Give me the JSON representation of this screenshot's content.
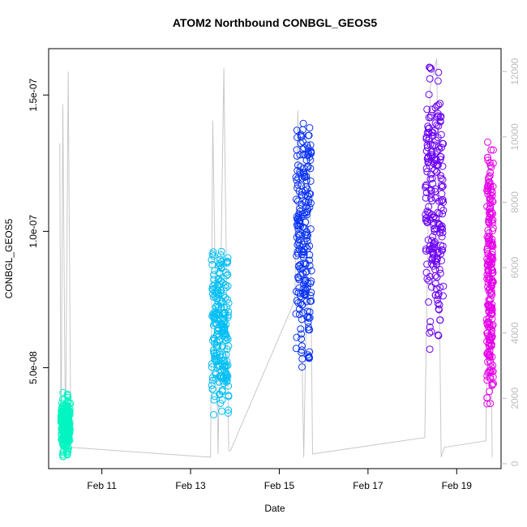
{
  "chart_data": {
    "type": "scatter",
    "title": "ATOM2 Northbound CONBGL_GEOS5",
    "xlabel": "Date",
    "ylabel": "CONBGL_GEOS5",
    "x_ticks": [
      "Feb 11",
      "Feb 13",
      "Feb 15",
      "Feb 17",
      "Feb 19"
    ],
    "x_tick_days": [
      11,
      13,
      15,
      17,
      19
    ],
    "xlim_days": [
      9.8,
      20.0
    ],
    "y_ticks": [
      "5.0e-08",
      "1.0e-07",
      "1.5e-07"
    ],
    "y_tick_values": [
      5e-08,
      1e-07,
      1.5e-07
    ],
    "ylim": [
      1.3e-08,
      1.67e-07
    ],
    "y2_ticks": [
      "0",
      "2000",
      "4000",
      "6000",
      "8000",
      "10000",
      "12000"
    ],
    "y2_tick_values": [
      0,
      2000,
      4000,
      6000,
      8000,
      10000,
      12000
    ],
    "y2lim": [
      -150,
      12700
    ],
    "colors": {
      "altitude_line": "#c8c8c8",
      "axis": "#000000",
      "right_axis": "#bdbdbd"
    },
    "series": [
      {
        "day_start": 10.08,
        "day_end": 10.28,
        "y_min": 1.7e-08,
        "y_max": 4.1e-08,
        "color": "#00f5c0"
      },
      {
        "day_start": 13.48,
        "day_end": 13.86,
        "y_min": 3.2e-08,
        "y_max": 9.5e-08,
        "color": "#00bff5"
      },
      {
        "day_start": 15.38,
        "day_end": 15.72,
        "y_min": 5e-08,
        "y_max": 1.45e-07,
        "color": "#0a33f5"
      },
      {
        "day_start": 18.3,
        "day_end": 18.7,
        "y_min": 5.5e-08,
        "y_max": 1.62e-07,
        "color": "#6a00f5"
      },
      {
        "day_start": 19.68,
        "day_end": 19.82,
        "y_min": 3.5e-08,
        "y_max": 1.35e-07,
        "color": "#e600ea"
      }
    ],
    "altitude_profile": {
      "day": [
        10.05,
        10.08,
        10.12,
        10.18,
        10.24,
        10.3,
        13.45,
        13.5,
        13.62,
        13.75,
        13.86,
        13.9,
        15.35,
        15.42,
        15.55,
        15.68,
        15.75,
        18.28,
        18.4,
        18.55,
        18.65,
        18.72,
        19.66,
        19.72,
        19.8
      ],
      "altitude": [
        9800,
        200,
        11000,
        300,
        12000,
        500,
        200,
        10500,
        300,
        12100,
        400,
        400,
        5000,
        10800,
        200,
        9900,
        300,
        800,
        11500,
        12400,
        200,
        500,
        700,
        9800,
        200
      ]
    }
  }
}
